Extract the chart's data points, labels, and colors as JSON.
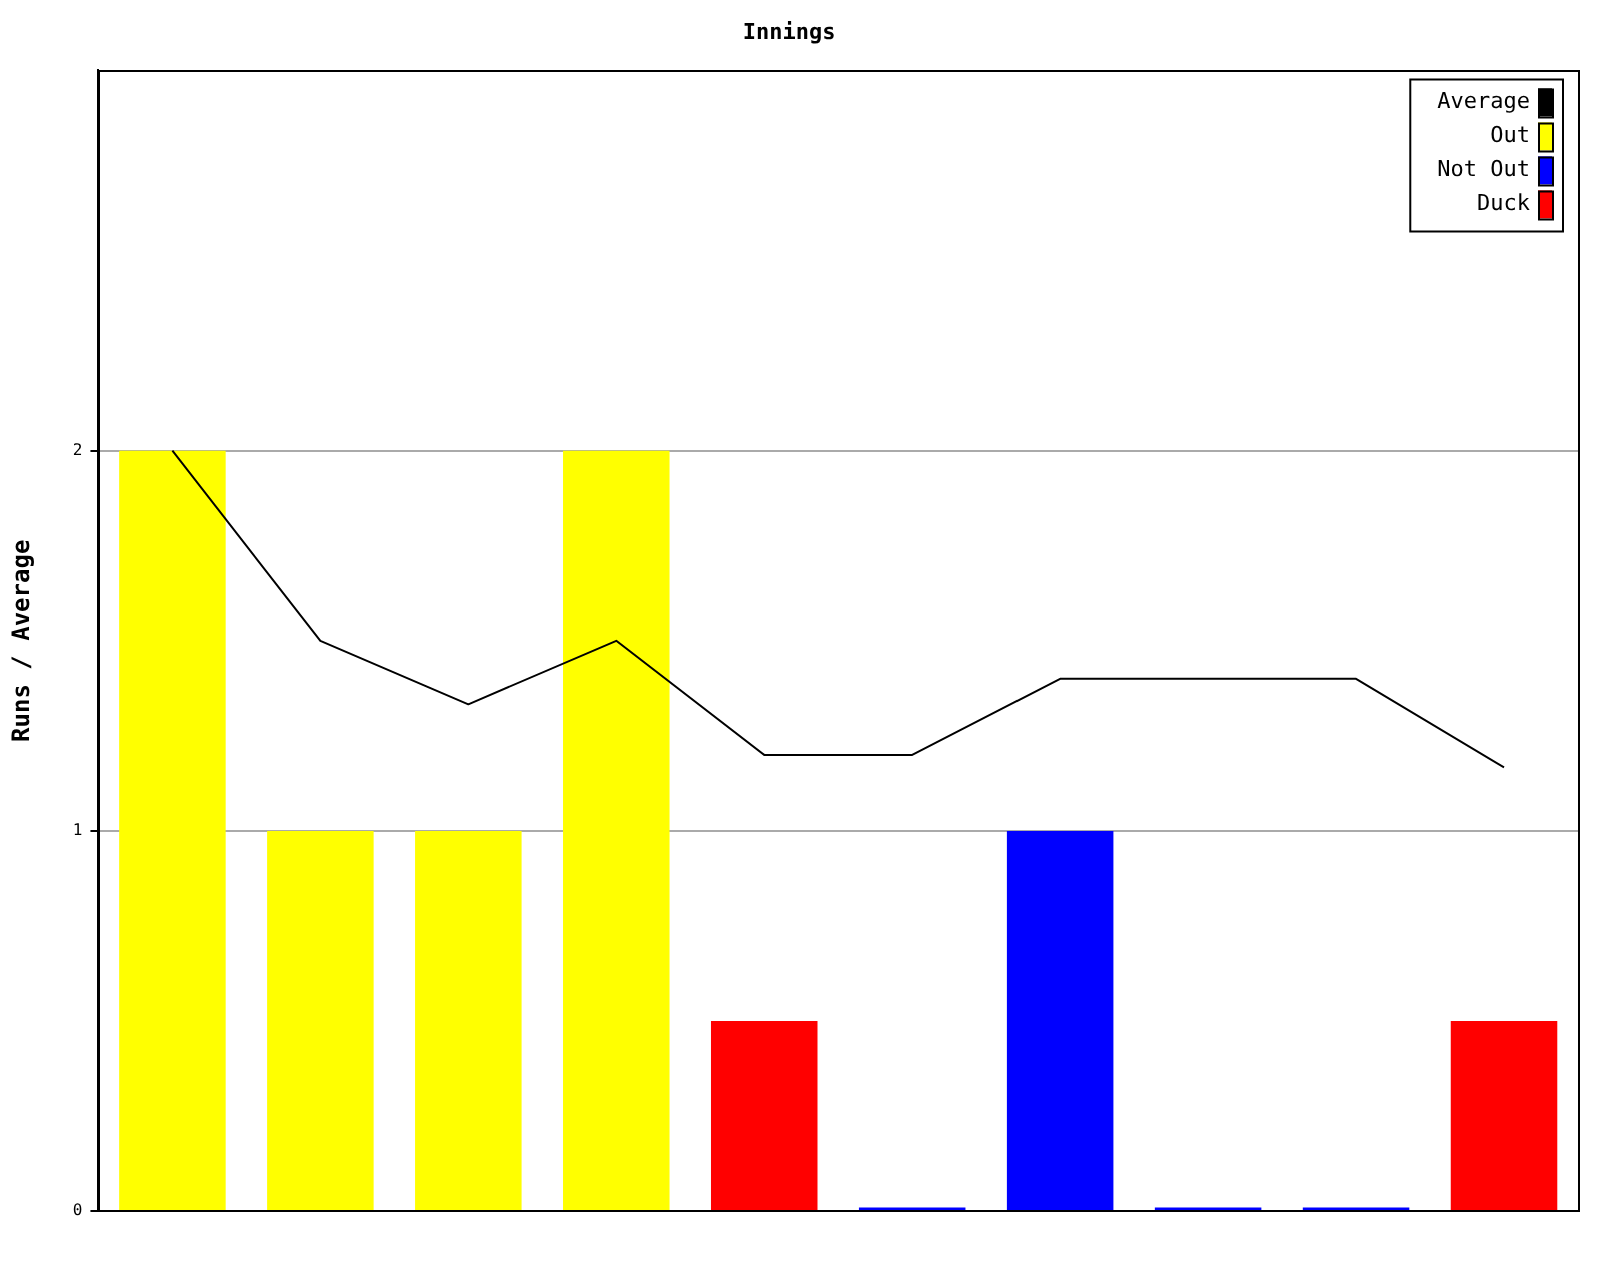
{
  "chart_data": {
    "type": "bar",
    "title": "Innings",
    "ylabel": "Runs / Average",
    "categories": [
      null,
      null,
      null,
      null,
      null,
      null,
      null,
      null,
      null,
      null
    ],
    "series": [
      {
        "name": "Average",
        "type": "line",
        "color": "#000000",
        "values": [
          2,
          1.5,
          1.333,
          1.5,
          1.2,
          1.2,
          1.4,
          1.4,
          1.4,
          1.167
        ]
      },
      {
        "name": "Out",
        "color": "#ffff00",
        "values": [
          2,
          1,
          1,
          2,
          null,
          null,
          null,
          null,
          null,
          null
        ]
      },
      {
        "name": "Not Out",
        "color": "#0000ff",
        "values": [
          null,
          null,
          null,
          null,
          null,
          0.01,
          1,
          0.01,
          0.01,
          null
        ]
      },
      {
        "name": "Duck",
        "color": "#ff0000",
        "values": [
          null,
          null,
          null,
          null,
          0.5,
          null,
          null,
          null,
          null,
          0.5
        ]
      }
    ],
    "ylim": [
      0,
      3
    ],
    "yticks": [
      0,
      1,
      2
    ],
    "grid": "y",
    "legend": "top right",
    "marker": "none"
  }
}
